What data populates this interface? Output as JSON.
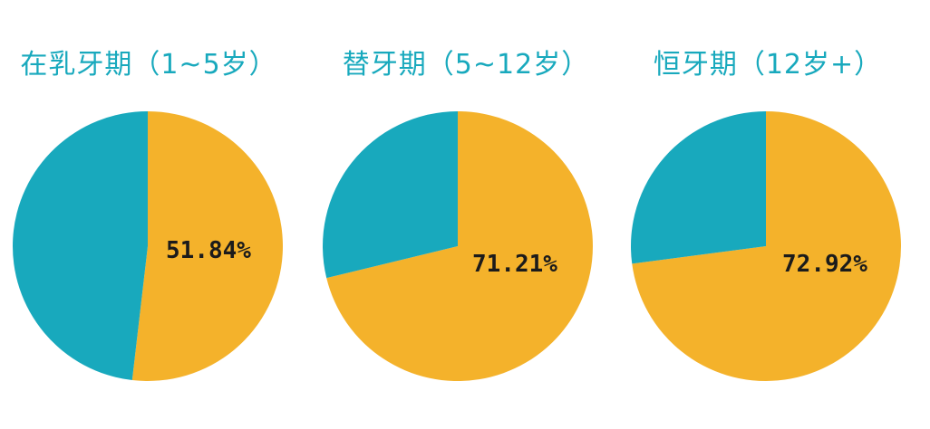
{
  "colors": {
    "majority": "#f4b22b",
    "remainder": "#18a9bd",
    "title": "#18a9bd",
    "label": "#1b1b1b"
  },
  "chart_data": [
    {
      "type": "pie",
      "title": "在乳牙期（1~5岁）",
      "slices": [
        {
          "value": 51.84,
          "color": "#f4b22b",
          "label": "51.84%"
        },
        {
          "value": 48.16,
          "color": "#18a9bd",
          "label": ""
        }
      ]
    },
    {
      "type": "pie",
      "title": "替牙期（5~12岁）",
      "slices": [
        {
          "value": 71.21,
          "color": "#f4b22b",
          "label": "71.21%"
        },
        {
          "value": 28.79,
          "color": "#18a9bd",
          "label": ""
        }
      ]
    },
    {
      "type": "pie",
      "title": "恒牙期（12岁+）",
      "slices": [
        {
          "value": 72.92,
          "color": "#f4b22b",
          "label": "72.92%"
        },
        {
          "value": 27.08,
          "color": "#18a9bd",
          "label": ""
        }
      ]
    }
  ]
}
